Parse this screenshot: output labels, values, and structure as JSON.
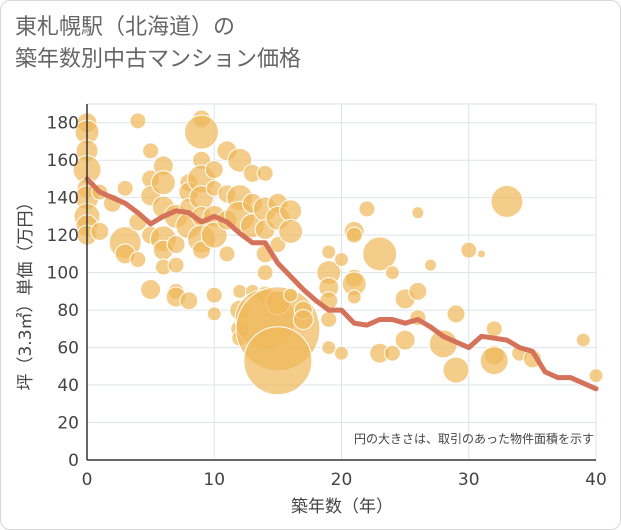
{
  "title_lines": [
    "東札幌駅（北海道）の",
    "築年数別中古マンション価格"
  ],
  "chart_data": {
    "type": "scatter",
    "xlabel": "築年数（年）",
    "ylabel": "坪（3.3㎡）単価（万円）",
    "xlim": [
      0,
      40
    ],
    "ylim": [
      0,
      190
    ],
    "xticks": [
      0,
      10,
      20,
      30,
      40
    ],
    "yticks": [
      0,
      20,
      40,
      60,
      80,
      100,
      120,
      140,
      160,
      180
    ],
    "grid": true,
    "annotation": "円の大きさは、取引のあった物件面積を示す",
    "colors": {
      "bubble": "#f0b85a",
      "line": "#d4725a",
      "grid": "#dde3ea",
      "axis": "#333333"
    },
    "bubbles": [
      {
        "x": 0,
        "y": 180,
        "size": 10
      },
      {
        "x": 0,
        "y": 175,
        "size": 12
      },
      {
        "x": 0,
        "y": 165,
        "size": 11
      },
      {
        "x": 0,
        "y": 155,
        "size": 14
      },
      {
        "x": 0,
        "y": 145,
        "size": 10
      },
      {
        "x": 0,
        "y": 140,
        "size": 12
      },
      {
        "x": 0,
        "y": 130,
        "size": 13
      },
      {
        "x": 0,
        "y": 125,
        "size": 11
      },
      {
        "x": 0,
        "y": 120,
        "size": 10
      },
      {
        "x": 1,
        "y": 122,
        "size": 9
      },
      {
        "x": 1,
        "y": 143,
        "size": 8
      },
      {
        "x": 2,
        "y": 137,
        "size": 9
      },
      {
        "x": 3,
        "y": 145,
        "size": 8
      },
      {
        "x": 3,
        "y": 116,
        "size": 16
      },
      {
        "x": 3,
        "y": 110,
        "size": 10
      },
      {
        "x": 4,
        "y": 107,
        "size": 8
      },
      {
        "x": 4,
        "y": 127,
        "size": 9
      },
      {
        "x": 5,
        "y": 165,
        "size": 8
      },
      {
        "x": 5,
        "y": 150,
        "size": 9
      },
      {
        "x": 5,
        "y": 141,
        "size": 10
      },
      {
        "x": 5,
        "y": 120,
        "size": 9
      },
      {
        "x": 5,
        "y": 91,
        "size": 10
      },
      {
        "x": 6,
        "y": 157,
        "size": 10
      },
      {
        "x": 6,
        "y": 148,
        "size": 12
      },
      {
        "x": 6,
        "y": 135,
        "size": 11
      },
      {
        "x": 6,
        "y": 118,
        "size": 13
      },
      {
        "x": 6,
        "y": 112,
        "size": 10
      },
      {
        "x": 6,
        "y": 103,
        "size": 8
      },
      {
        "x": 7,
        "y": 130,
        "size": 12
      },
      {
        "x": 7,
        "y": 115,
        "size": 9
      },
      {
        "x": 7,
        "y": 104,
        "size": 8
      },
      {
        "x": 7,
        "y": 90,
        "size": 8
      },
      {
        "x": 7,
        "y": 87,
        "size": 10
      },
      {
        "x": 4,
        "y": 181,
        "size": 8
      },
      {
        "x": 8,
        "y": 148,
        "size": 9
      },
      {
        "x": 8,
        "y": 143,
        "size": 10
      },
      {
        "x": 8,
        "y": 135,
        "size": 9
      },
      {
        "x": 8,
        "y": 125,
        "size": 13
      },
      {
        "x": 8,
        "y": 85,
        "size": 9
      },
      {
        "x": 9,
        "y": 182,
        "size": 9
      },
      {
        "x": 9,
        "y": 175,
        "size": 17
      },
      {
        "x": 9,
        "y": 160,
        "size": 9
      },
      {
        "x": 9,
        "y": 150,
        "size": 14
      },
      {
        "x": 9,
        "y": 140,
        "size": 12
      },
      {
        "x": 9,
        "y": 130,
        "size": 10
      },
      {
        "x": 9,
        "y": 118,
        "size": 14
      },
      {
        "x": 9,
        "y": 112,
        "size": 9
      },
      {
        "x": 10,
        "y": 155,
        "size": 9
      },
      {
        "x": 10,
        "y": 145,
        "size": 8
      },
      {
        "x": 10,
        "y": 130,
        "size": 11
      },
      {
        "x": 10,
        "y": 120,
        "size": 13
      },
      {
        "x": 10,
        "y": 88,
        "size": 8
      },
      {
        "x": 10,
        "y": 78,
        "size": 7
      },
      {
        "x": 11,
        "y": 165,
        "size": 10
      },
      {
        "x": 11,
        "y": 142,
        "size": 9
      },
      {
        "x": 11,
        "y": 128,
        "size": 10
      },
      {
        "x": 11,
        "y": 110,
        "size": 8
      },
      {
        "x": 12,
        "y": 160,
        "size": 12
      },
      {
        "x": 12,
        "y": 140,
        "size": 13
      },
      {
        "x": 12,
        "y": 130,
        "size": 15
      },
      {
        "x": 12,
        "y": 90,
        "size": 7
      },
      {
        "x": 12,
        "y": 80,
        "size": 10
      },
      {
        "x": 12,
        "y": 70,
        "size": 9
      },
      {
        "x": 12,
        "y": 65,
        "size": 8
      },
      {
        "x": 13,
        "y": 153,
        "size": 9
      },
      {
        "x": 13,
        "y": 137,
        "size": 10
      },
      {
        "x": 13,
        "y": 125,
        "size": 12
      },
      {
        "x": 13,
        "y": 90,
        "size": 7
      },
      {
        "x": 14,
        "y": 153,
        "size": 8
      },
      {
        "x": 14,
        "y": 134,
        "size": 12
      },
      {
        "x": 14,
        "y": 123,
        "size": 10
      },
      {
        "x": 14,
        "y": 110,
        "size": 9
      },
      {
        "x": 14,
        "y": 100,
        "size": 8
      },
      {
        "x": 14,
        "y": 88,
        "size": 9
      },
      {
        "x": 14,
        "y": 75,
        "size": 30
      },
      {
        "x": 15,
        "y": 137,
        "size": 10
      },
      {
        "x": 15,
        "y": 129,
        "size": 12
      },
      {
        "x": 15,
        "y": 115,
        "size": 8
      },
      {
        "x": 15,
        "y": 84,
        "size": 12
      },
      {
        "x": 15,
        "y": 70,
        "size": 42
      },
      {
        "x": 15,
        "y": 53,
        "size": 34
      },
      {
        "x": 16,
        "y": 133,
        "size": 11
      },
      {
        "x": 16,
        "y": 122,
        "size": 12
      },
      {
        "x": 16,
        "y": 88,
        "size": 7
      },
      {
        "x": 17,
        "y": 80,
        "size": 9
      },
      {
        "x": 17,
        "y": 75,
        "size": 10
      },
      {
        "x": 19,
        "y": 111,
        "size": 7
      },
      {
        "x": 19,
        "y": 100,
        "size": 12
      },
      {
        "x": 19,
        "y": 92,
        "size": 10
      },
      {
        "x": 19,
        "y": 85,
        "size": 9
      },
      {
        "x": 19,
        "y": 75,
        "size": 8
      },
      {
        "x": 19,
        "y": 60,
        "size": 7
      },
      {
        "x": 20,
        "y": 107,
        "size": 7
      },
      {
        "x": 20,
        "y": 57,
        "size": 7
      },
      {
        "x": 21,
        "y": 122,
        "size": 10
      },
      {
        "x": 21,
        "y": 120,
        "size": 8
      },
      {
        "x": 21,
        "y": 97,
        "size": 9
      },
      {
        "x": 21,
        "y": 94,
        "size": 12
      },
      {
        "x": 21,
        "y": 87,
        "size": 7
      },
      {
        "x": 22,
        "y": 134,
        "size": 8
      },
      {
        "x": 23,
        "y": 110,
        "size": 17
      },
      {
        "x": 23,
        "y": 57,
        "size": 10
      },
      {
        "x": 24,
        "y": 57,
        "size": 8
      },
      {
        "x": 24,
        "y": 100,
        "size": 7
      },
      {
        "x": 25,
        "y": 86,
        "size": 10
      },
      {
        "x": 25,
        "y": 64,
        "size": 10
      },
      {
        "x": 26,
        "y": 132,
        "size": 6
      },
      {
        "x": 26,
        "y": 90,
        "size": 9
      },
      {
        "x": 26,
        "y": 76,
        "size": 8
      },
      {
        "x": 27,
        "y": 104,
        "size": 6
      },
      {
        "x": 28,
        "y": 62,
        "size": 14
      },
      {
        "x": 29,
        "y": 78,
        "size": 9
      },
      {
        "x": 29,
        "y": 48,
        "size": 13
      },
      {
        "x": 30,
        "y": 112,
        "size": 8
      },
      {
        "x": 31,
        "y": 110,
        "size": 4
      },
      {
        "x": 32,
        "y": 70,
        "size": 8
      },
      {
        "x": 32,
        "y": 56,
        "size": 10
      },
      {
        "x": 32,
        "y": 53,
        "size": 14
      },
      {
        "x": 33,
        "y": 138,
        "size": 16
      },
      {
        "x": 34,
        "y": 57,
        "size": 8
      },
      {
        "x": 35,
        "y": 54,
        "size": 9
      },
      {
        "x": 39,
        "y": 64,
        "size": 7
      },
      {
        "x": 40,
        "y": 45,
        "size": 7
      }
    ],
    "series": [
      {
        "x": [
          0,
          1,
          2,
          3,
          4,
          5,
          6,
          7,
          8,
          9,
          10,
          11,
          12,
          13,
          14,
          15,
          16,
          17,
          18,
          19,
          20,
          21,
          22,
          23,
          24,
          25,
          26,
          27,
          28,
          29,
          30,
          31,
          32,
          33,
          34,
          35,
          36,
          37,
          38,
          39,
          40
        ],
        "y": [
          150,
          143,
          140,
          137,
          132,
          126,
          130,
          133,
          132,
          127,
          130,
          127,
          121,
          116,
          116,
          105,
          98,
          91,
          85,
          80,
          80,
          73,
          72,
          75,
          75,
          73,
          75,
          71,
          66,
          63,
          60,
          66,
          65,
          64,
          60,
          58,
          47,
          44,
          44,
          41,
          38
        ]
      }
    ]
  }
}
